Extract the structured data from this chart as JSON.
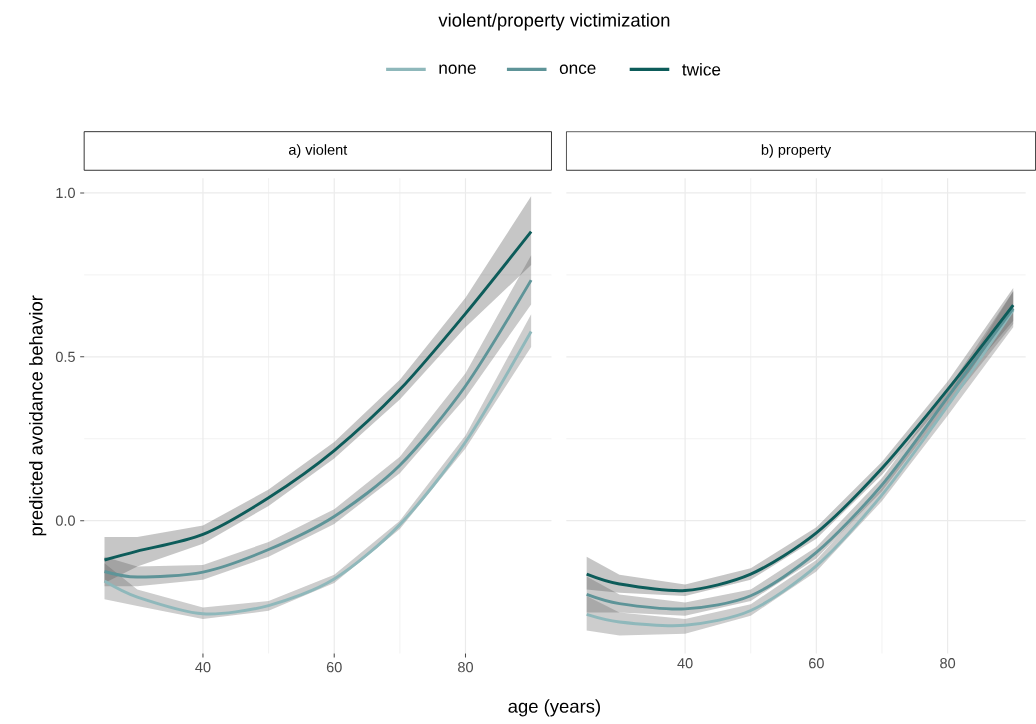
{
  "chart_data": [
    {
      "type": "line",
      "title": "a) violent",
      "xlabel": "age (years)",
      "ylabel": "predicted avoidance behavior",
      "legend_title": "violent/property victimization",
      "legend": "top",
      "grid": true,
      "line_style": "solid",
      "marker": "none",
      "xlim": [
        21.9,
        93.1
      ],
      "xticks": [
        40,
        60,
        80
      ],
      "ylim": [
        -0.405,
        1.045
      ],
      "yticks": [
        {
          "value": 0,
          "label": "0.0"
        },
        {
          "value": 0.5,
          "label": "0.5"
        },
        {
          "value": 1,
          "label": "1.0"
        }
      ],
      "x": [
        25,
        30,
        40,
        50,
        60,
        70,
        80,
        90
      ],
      "series": [
        {
          "name": "none",
          "color": "#8fb8bb",
          "values": [
            -0.184,
            -0.233,
            -0.284,
            -0.259,
            -0.178,
            -0.012,
            0.24,
            0.577
          ],
          "lower": [
            -0.24,
            -0.26,
            -0.3,
            -0.275,
            -0.19,
            -0.025,
            0.22,
            0.53
          ],
          "upper": [
            -0.13,
            -0.21,
            -0.265,
            -0.245,
            -0.165,
            0.0,
            0.26,
            0.63
          ]
        },
        {
          "name": "once",
          "color": "#5e9498",
          "values": [
            -0.155,
            -0.172,
            -0.157,
            -0.088,
            0.013,
            0.169,
            0.411,
            0.734
          ],
          "lower": [
            -0.2,
            -0.2,
            -0.18,
            -0.11,
            -0.01,
            0.145,
            0.375,
            0.66
          ],
          "upper": [
            -0.11,
            -0.14,
            -0.135,
            -0.065,
            0.035,
            0.195,
            0.45,
            0.81
          ]
        },
        {
          "name": "twice",
          "color": "#0d5c5a",
          "values": [
            -0.12,
            -0.093,
            -0.042,
            0.07,
            0.214,
            0.4,
            0.632,
            0.882
          ],
          "lower": [
            -0.19,
            -0.14,
            -0.07,
            0.045,
            0.19,
            0.37,
            0.59,
            0.78
          ],
          "upper": [
            -0.05,
            -0.05,
            -0.015,
            0.095,
            0.24,
            0.43,
            0.68,
            0.99
          ]
        }
      ]
    },
    {
      "type": "line",
      "title": "b) property",
      "grid": true,
      "line_style": "solid",
      "marker": "none",
      "tick_labels": "x",
      "xlim": [
        21.9,
        91.9
      ],
      "xticks": [
        40,
        60,
        80
      ],
      "ylim": [
        -0.405,
        1.045
      ],
      "yticks": [
        {
          "value": 0,
          "label": null
        },
        {
          "value": 0.5,
          "label": null
        },
        {
          "value": 1,
          "label": null
        }
      ],
      "x": [
        25,
        30,
        40,
        50,
        60,
        70,
        80,
        90
      ],
      "series": [
        {
          "color": "#8fb8bb",
          "values": [
            -0.286,
            -0.309,
            -0.319,
            -0.274,
            -0.138,
            0.079,
            0.35,
            0.643
          ],
          "lower": [
            -0.335,
            -0.35,
            -0.345,
            -0.29,
            -0.155,
            0.06,
            0.32,
            0.59
          ],
          "upper": [
            -0.23,
            -0.28,
            -0.3,
            -0.255,
            -0.12,
            0.1,
            0.38,
            0.7
          ]
        },
        {
          "color": "#5e9498",
          "values": [
            -0.225,
            -0.253,
            -0.269,
            -0.229,
            -0.097,
            0.109,
            0.376,
            0.648
          ],
          "lower": [
            -0.28,
            -0.28,
            -0.29,
            -0.245,
            -0.115,
            0.09,
            0.35,
            0.6
          ],
          "upper": [
            -0.17,
            -0.225,
            -0.25,
            -0.21,
            -0.08,
            0.13,
            0.4,
            0.7
          ]
        },
        {
          "color": "#0d5c5a",
          "values": [
            -0.163,
            -0.193,
            -0.213,
            -0.163,
            -0.037,
            0.16,
            0.4,
            0.658
          ],
          "lower": [
            -0.21,
            -0.22,
            -0.23,
            -0.18,
            -0.055,
            0.14,
            0.375,
            0.61
          ],
          "upper": [
            -0.11,
            -0.165,
            -0.195,
            -0.145,
            -0.02,
            0.18,
            0.425,
            0.71
          ]
        }
      ]
    }
  ]
}
